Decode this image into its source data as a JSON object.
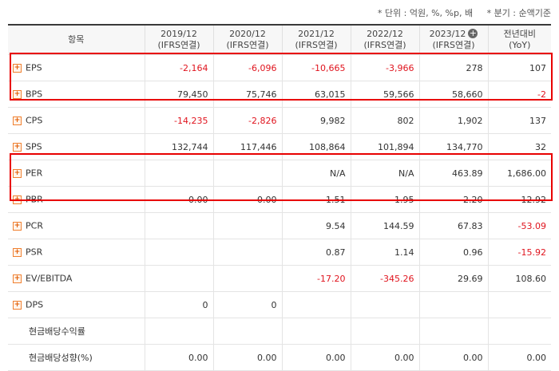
{
  "notes": {
    "unit": "* 단위 : 억원, %, %p, 배",
    "period": "* 분기 : 순액기준"
  },
  "header": {
    "item": "항목",
    "cols": [
      {
        "period": "2019/12",
        "basis": "(IFRS연결)"
      },
      {
        "period": "2020/12",
        "basis": "(IFRS연결)"
      },
      {
        "period": "2021/12",
        "basis": "(IFRS연결)"
      },
      {
        "period": "2022/12",
        "basis": "(IFRS연결)"
      },
      {
        "period": "2023/12",
        "basis": "(IFRS연결)"
      },
      {
        "period": "전년대비",
        "basis": "(YoY)"
      }
    ],
    "add_icon": "plus-circle-icon"
  },
  "rows": [
    {
      "label": "EPS",
      "expand": true,
      "values": [
        "-2,164",
        "-6,096",
        "-10,665",
        "-3,966",
        "278",
        "107"
      ]
    },
    {
      "label": "BPS",
      "expand": true,
      "values": [
        "79,450",
        "75,746",
        "63,015",
        "59,566",
        "58,660",
        "-2"
      ]
    },
    {
      "label": "CPS",
      "expand": true,
      "values": [
        "-14,235",
        "-2,826",
        "9,982",
        "802",
        "1,902",
        "137"
      ]
    },
    {
      "label": "SPS",
      "expand": true,
      "values": [
        "132,744",
        "117,446",
        "108,864",
        "101,894",
        "134,770",
        "32"
      ]
    },
    {
      "label": "PER",
      "expand": true,
      "values": [
        "",
        "",
        "N/A",
        "N/A",
        "463.89",
        "1,686.00"
      ]
    },
    {
      "label": "PBR",
      "expand": true,
      "values": [
        "0.00",
        "0.00",
        "1.51",
        "1.95",
        "2.20",
        "12.92"
      ]
    },
    {
      "label": "PCR",
      "expand": true,
      "values": [
        "",
        "",
        "9.54",
        "144.59",
        "67.83",
        "-53.09"
      ]
    },
    {
      "label": "PSR",
      "expand": true,
      "values": [
        "",
        "",
        "0.87",
        "1.14",
        "0.96",
        "-15.92"
      ]
    },
    {
      "label": "EV/EBITDA",
      "expand": true,
      "values": [
        "",
        "",
        "-17.20",
        "-345.26",
        "29.69",
        "108.60"
      ]
    },
    {
      "label": "DPS",
      "expand": true,
      "values": [
        "0",
        "0",
        "",
        "",
        "",
        ""
      ]
    },
    {
      "label": "현금배당수익률",
      "expand": false,
      "values": [
        "",
        "",
        "",
        "",
        "",
        ""
      ]
    },
    {
      "label": "현금배당성향(%)",
      "expand": false,
      "values": [
        "0.00",
        "0.00",
        "0.00",
        "0.00",
        "0.00",
        "0.00"
      ]
    }
  ],
  "highlight_color": "#e80000",
  "negative_color": "#e0141e"
}
